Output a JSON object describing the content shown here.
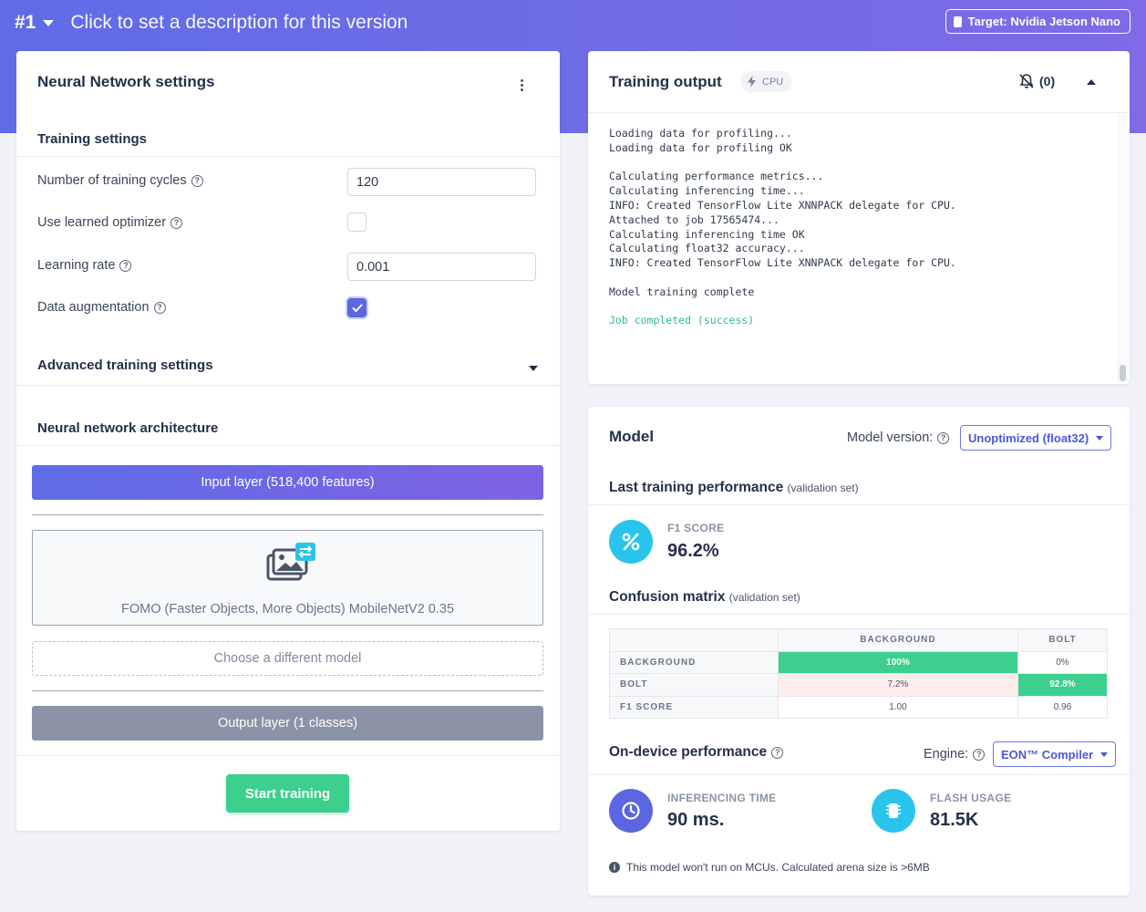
{
  "header": {
    "version": "#1",
    "description_placeholder": "Click to set a description for this version",
    "target_label": "Target: Nvidia Jetson Nano"
  },
  "nn_settings": {
    "title": "Neural Network settings",
    "training_settings_title": "Training settings",
    "fields": {
      "cycles_label": "Number of training cycles",
      "cycles_value": "120",
      "optimizer_label": "Use learned optimizer",
      "optimizer_checked": false,
      "lr_label": "Learning rate",
      "lr_value": "0.001",
      "augmentation_label": "Data augmentation",
      "augmentation_checked": true
    },
    "advanced_title": "Advanced training settings",
    "architecture_title": "Neural network architecture",
    "input_layer": "Input layer (518,400 features)",
    "model_name": "FOMO (Faster Objects, More Objects) MobileNetV2 0.35",
    "choose_model": "Choose a different model",
    "output_layer": "Output layer (1 classes)",
    "start_button": "Start training"
  },
  "training_output": {
    "title": "Training output",
    "cpu_badge": "CPU",
    "notification_count": "(0)",
    "log_lines": [
      "Loading data for profiling...",
      "Loading data for profiling OK",
      "",
      "Calculating performance metrics...",
      "Calculating inferencing time...",
      "INFO: Created TensorFlow Lite XNNPACK delegate for CPU.",
      "Attached to job 17565474...",
      "Calculating inferencing time OK",
      "Calculating float32 accuracy...",
      "INFO: Created TensorFlow Lite XNNPACK delegate for CPU.",
      "",
      "Model training complete",
      ""
    ],
    "final_line": "Job completed (success)"
  },
  "model": {
    "title": "Model",
    "version_label": "Model version:",
    "version_value": "Unoptimized (float32)",
    "last_perf_title": "Last training performance",
    "validation_set": "(validation set)",
    "f1_label": "F1 SCORE",
    "f1_value": "96.2%",
    "confusion_title": "Confusion matrix",
    "confusion": {
      "col_headers": [
        "BACKGROUND",
        "BOLT"
      ],
      "rows": [
        {
          "label": "BACKGROUND",
          "values": [
            "100%",
            "0%"
          ]
        },
        {
          "label": "BOLT",
          "values": [
            "7.2%",
            "92.8%"
          ]
        },
        {
          "label": "F1 SCORE",
          "values": [
            "1.00",
            "0.96"
          ]
        }
      ]
    },
    "ondevice_title": "On-device performance",
    "engine_label": "Engine:",
    "engine_value": "EON™ Compiler",
    "inferencing_label": "INFERENCING TIME",
    "inferencing_value": "90 ms.",
    "flash_label": "FLASH USAGE",
    "flash_value": "81.5K",
    "note": "This model won't run on MCUs. Calculated arena size is >6MB"
  },
  "colors": {
    "header_gradient_start": "#5f6ce6",
    "header_gradient_end": "#7e6be6",
    "accent": "#5b66e0",
    "success": "#3ccf8e",
    "f1_circle": "#29c4ec",
    "inferencing_circle": "#5b66e0",
    "flash_circle": "#29c4ec"
  },
  "icons": [
    "caret-down-icon",
    "chip-icon",
    "kebab-menu-icon",
    "help-icon",
    "check-icon",
    "image-swap-icon",
    "bolt-icon",
    "bell-off-icon",
    "caret-up-icon",
    "percent-icon",
    "clock-icon",
    "info-icon"
  ]
}
